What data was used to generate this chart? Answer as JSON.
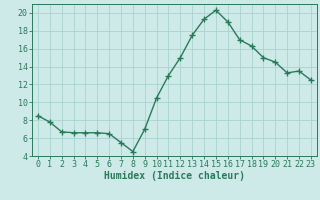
{
  "x": [
    0,
    1,
    2,
    3,
    4,
    5,
    6,
    7,
    8,
    9,
    10,
    11,
    12,
    13,
    14,
    15,
    16,
    17,
    18,
    19,
    20,
    21,
    22,
    23
  ],
  "y": [
    8.5,
    7.8,
    6.7,
    6.6,
    6.6,
    6.6,
    6.5,
    5.5,
    4.5,
    7.0,
    10.5,
    13.0,
    15.0,
    17.5,
    19.3,
    20.3,
    19.0,
    17.0,
    16.3,
    15.0,
    14.5,
    13.3,
    13.5,
    12.5
  ],
  "line_color": "#2a7a5a",
  "marker": "+",
  "marker_size": 4,
  "linewidth": 1.0,
  "bg_color": "#ceeae8",
  "grid_color": "#a8d4d0",
  "xlabel": "Humidex (Indice chaleur)",
  "xlim": [
    -0.5,
    23.5
  ],
  "ylim": [
    4,
    21
  ],
  "yticks": [
    4,
    6,
    8,
    10,
    12,
    14,
    16,
    18,
    20
  ],
  "xticks": [
    0,
    1,
    2,
    3,
    4,
    5,
    6,
    7,
    8,
    9,
    10,
    11,
    12,
    13,
    14,
    15,
    16,
    17,
    18,
    19,
    20,
    21,
    22,
    23
  ],
  "xlabel_fontsize": 7,
  "tick_fontsize": 6,
  "tick_color": "#2a7a5a",
  "axis_color": "#2a7a5a"
}
